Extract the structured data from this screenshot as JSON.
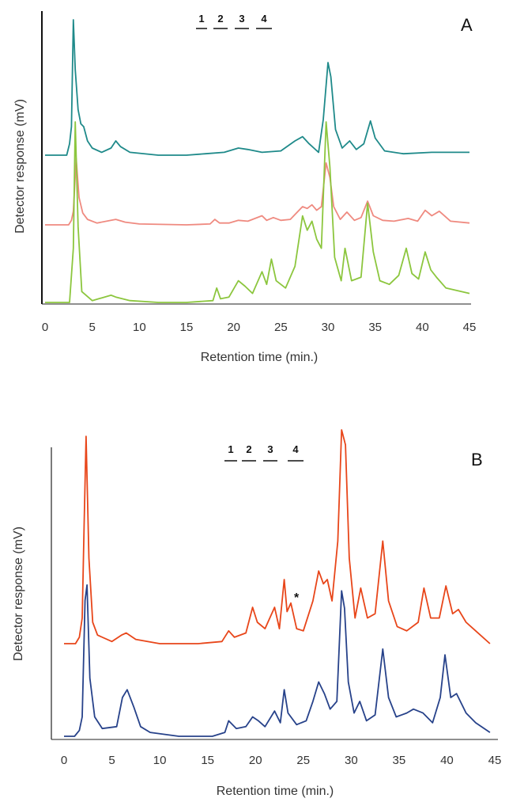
{
  "chart_data": [
    {
      "type": "line",
      "panel_label": "A",
      "xlabel": "Retention time (min.)",
      "ylabel": "Detector response (mV)",
      "xlim": [
        0,
        45
      ],
      "x_ticks": [
        "0",
        "5",
        "10",
        "15",
        "20",
        "25",
        "30",
        "35",
        "40",
        "45"
      ],
      "fractions": [
        "1",
        "2",
        "3",
        "4"
      ],
      "series": [
        {
          "color": "#1f8a8a",
          "baseline": 0.0,
          "values": [
            [
              2.3,
              0.0
            ],
            [
              2.6,
              0.08
            ],
            [
              2.8,
              0.2
            ],
            [
              3.0,
              0.95
            ],
            [
              3.2,
              0.6
            ],
            [
              3.5,
              0.32
            ],
            [
              3.8,
              0.22
            ],
            [
              4.1,
              0.2
            ],
            [
              4.5,
              0.1
            ],
            [
              5.0,
              0.05
            ],
            [
              6.0,
              0.02
            ],
            [
              7.0,
              0.05
            ],
            [
              7.5,
              0.1
            ],
            [
              8.0,
              0.06
            ],
            [
              9.0,
              0.02
            ],
            [
              12.0,
              0.0
            ],
            [
              15.0,
              0.0
            ],
            [
              17.0,
              0.01
            ],
            [
              19.0,
              0.02
            ],
            [
              20.5,
              0.05
            ],
            [
              21.5,
              0.04
            ],
            [
              23.0,
              0.02
            ],
            [
              25.0,
              0.03
            ],
            [
              26.5,
              0.1
            ],
            [
              27.3,
              0.13
            ],
            [
              28.0,
              0.08
            ],
            [
              28.5,
              0.05
            ],
            [
              29.0,
              0.02
            ],
            [
              29.5,
              0.25
            ],
            [
              30.0,
              0.65
            ],
            [
              30.3,
              0.55
            ],
            [
              30.8,
              0.18
            ],
            [
              31.5,
              0.05
            ],
            [
              32.3,
              0.1
            ],
            [
              33.0,
              0.04
            ],
            [
              33.8,
              0.08
            ],
            [
              34.5,
              0.24
            ],
            [
              35.0,
              0.12
            ],
            [
              36.0,
              0.03
            ],
            [
              38.0,
              0.01
            ],
            [
              41.0,
              0.02
            ],
            [
              45.0,
              0.02
            ]
          ]
        },
        {
          "color": "#ef8a80",
          "baseline": 0.0,
          "values": [
            [
              2.5,
              0.0
            ],
            [
              2.8,
              0.05
            ],
            [
              3.0,
              0.15
            ],
            [
              3.3,
              0.73
            ],
            [
              3.6,
              0.3
            ],
            [
              4.0,
              0.13
            ],
            [
              4.5,
              0.06
            ],
            [
              5.5,
              0.02
            ],
            [
              7.0,
              0.05
            ],
            [
              7.5,
              0.06
            ],
            [
              8.5,
              0.03
            ],
            [
              10.0,
              0.01
            ],
            [
              15.0,
              0.0
            ],
            [
              17.5,
              0.01
            ],
            [
              18.0,
              0.06
            ],
            [
              18.5,
              0.02
            ],
            [
              19.5,
              0.02
            ],
            [
              20.5,
              0.05
            ],
            [
              21.5,
              0.04
            ],
            [
              23.0,
              0.1
            ],
            [
              23.5,
              0.05
            ],
            [
              24.2,
              0.08
            ],
            [
              25.0,
              0.05
            ],
            [
              26.0,
              0.06
            ],
            [
              27.3,
              0.2
            ],
            [
              27.8,
              0.18
            ],
            [
              28.3,
              0.22
            ],
            [
              28.8,
              0.16
            ],
            [
              29.3,
              0.2
            ],
            [
              29.8,
              0.68
            ],
            [
              30.2,
              0.52
            ],
            [
              30.6,
              0.2
            ],
            [
              31.3,
              0.06
            ],
            [
              32.0,
              0.14
            ],
            [
              32.8,
              0.05
            ],
            [
              33.5,
              0.08
            ],
            [
              34.2,
              0.26
            ],
            [
              34.8,
              0.1
            ],
            [
              35.8,
              0.05
            ],
            [
              37.0,
              0.04
            ],
            [
              38.5,
              0.07
            ],
            [
              39.5,
              0.04
            ],
            [
              40.3,
              0.16
            ],
            [
              41.0,
              0.1
            ],
            [
              41.8,
              0.15
            ],
            [
              43.0,
              0.04
            ],
            [
              45.0,
              0.02
            ]
          ]
        },
        {
          "color": "#8cc63e",
          "baseline": 0.0,
          "values": [
            [
              2.6,
              0.0
            ],
            [
              3.0,
              0.3
            ],
            [
              3.2,
              1.0
            ],
            [
              3.5,
              0.42
            ],
            [
              3.9,
              0.06
            ],
            [
              5.0,
              0.01
            ],
            [
              7.0,
              0.04
            ],
            [
              7.5,
              0.03
            ],
            [
              9.0,
              0.01
            ],
            [
              12.0,
              0.0
            ],
            [
              15.0,
              0.0
            ],
            [
              17.8,
              0.01
            ],
            [
              18.2,
              0.08
            ],
            [
              18.6,
              0.02
            ],
            [
              19.5,
              0.03
            ],
            [
              20.5,
              0.12
            ],
            [
              21.2,
              0.09
            ],
            [
              22.0,
              0.05
            ],
            [
              23.0,
              0.17
            ],
            [
              23.5,
              0.1
            ],
            [
              24.0,
              0.24
            ],
            [
              24.5,
              0.12
            ],
            [
              25.5,
              0.08
            ],
            [
              26.5,
              0.2
            ],
            [
              27.3,
              0.48
            ],
            [
              27.8,
              0.4
            ],
            [
              28.3,
              0.45
            ],
            [
              28.8,
              0.35
            ],
            [
              29.3,
              0.3
            ],
            [
              29.8,
              1.0
            ],
            [
              30.2,
              0.75
            ],
            [
              30.7,
              0.25
            ],
            [
              31.4,
              0.12
            ],
            [
              31.8,
              0.3
            ],
            [
              32.5,
              0.12
            ],
            [
              33.5,
              0.14
            ],
            [
              34.2,
              0.55
            ],
            [
              34.8,
              0.28
            ],
            [
              35.5,
              0.12
            ],
            [
              36.5,
              0.1
            ],
            [
              37.5,
              0.15
            ],
            [
              38.3,
              0.3
            ],
            [
              38.9,
              0.16
            ],
            [
              39.6,
              0.13
            ],
            [
              40.3,
              0.28
            ],
            [
              40.9,
              0.18
            ],
            [
              41.5,
              0.14
            ],
            [
              42.5,
              0.08
            ],
            [
              45.0,
              0.05
            ]
          ]
        }
      ]
    },
    {
      "type": "line",
      "panel_label": "B",
      "xlabel": "Retention time (min.)",
      "ylabel": "Detector response (mV)",
      "xlim": [
        0,
        45
      ],
      "x_ticks": [
        "0",
        "5",
        "10",
        "15",
        "20",
        "25",
        "30",
        "35",
        "40",
        "45"
      ],
      "fractions": [
        "1",
        "2",
        "3",
        "4"
      ],
      "annotation": "*",
      "series": [
        {
          "color": "#e8461a",
          "baseline": 0.0,
          "values": [
            [
              1.2,
              0.0
            ],
            [
              1.6,
              0.03
            ],
            [
              1.9,
              0.12
            ],
            [
              2.1,
              0.55
            ],
            [
              2.3,
              0.97
            ],
            [
              2.6,
              0.4
            ],
            [
              3.0,
              0.1
            ],
            [
              3.5,
              0.04
            ],
            [
              5.0,
              0.01
            ],
            [
              6.0,
              0.04
            ],
            [
              6.5,
              0.05
            ],
            [
              7.5,
              0.02
            ],
            [
              10.0,
              0.0
            ],
            [
              14.0,
              0.0
            ],
            [
              16.5,
              0.01
            ],
            [
              17.2,
              0.06
            ],
            [
              17.8,
              0.03
            ],
            [
              19.0,
              0.05
            ],
            [
              19.7,
              0.17
            ],
            [
              20.2,
              0.1
            ],
            [
              21.0,
              0.07
            ],
            [
              22.0,
              0.17
            ],
            [
              22.5,
              0.07
            ],
            [
              23.0,
              0.3
            ],
            [
              23.3,
              0.15
            ],
            [
              23.7,
              0.19
            ],
            [
              24.3,
              0.07
            ],
            [
              25.0,
              0.06
            ],
            [
              26.0,
              0.2
            ],
            [
              26.6,
              0.34
            ],
            [
              27.1,
              0.28
            ],
            [
              27.5,
              0.3
            ],
            [
              28.0,
              0.2
            ],
            [
              28.6,
              0.48
            ],
            [
              29.0,
              1.0
            ],
            [
              29.4,
              0.93
            ],
            [
              29.8,
              0.4
            ],
            [
              30.4,
              0.12
            ],
            [
              31.0,
              0.26
            ],
            [
              31.7,
              0.12
            ],
            [
              32.5,
              0.14
            ],
            [
              33.3,
              0.48
            ],
            [
              33.9,
              0.2
            ],
            [
              34.8,
              0.08
            ],
            [
              35.8,
              0.06
            ],
            [
              37.0,
              0.1
            ],
            [
              37.6,
              0.26
            ],
            [
              38.3,
              0.12
            ],
            [
              39.2,
              0.12
            ],
            [
              39.9,
              0.27
            ],
            [
              40.6,
              0.14
            ],
            [
              41.2,
              0.16
            ],
            [
              42.0,
              0.1
            ],
            [
              43.0,
              0.06
            ],
            [
              44.5,
              0.0
            ]
          ]
        },
        {
          "color": "#27428a",
          "baseline": 0.0,
          "values": [
            [
              1.1,
              0.0
            ],
            [
              1.6,
              0.03
            ],
            [
              1.9,
              0.1
            ],
            [
              2.2,
              0.7
            ],
            [
              2.4,
              0.78
            ],
            [
              2.7,
              0.3
            ],
            [
              3.2,
              0.1
            ],
            [
              4.0,
              0.04
            ],
            [
              5.5,
              0.05
            ],
            [
              6.1,
              0.2
            ],
            [
              6.6,
              0.24
            ],
            [
              7.3,
              0.15
            ],
            [
              8.0,
              0.05
            ],
            [
              9.0,
              0.02
            ],
            [
              12.0,
              0.0
            ],
            [
              15.5,
              0.0
            ],
            [
              16.8,
              0.02
            ],
            [
              17.2,
              0.08
            ],
            [
              18.0,
              0.04
            ],
            [
              19.0,
              0.05
            ],
            [
              19.7,
              0.1
            ],
            [
              20.3,
              0.08
            ],
            [
              21.0,
              0.05
            ],
            [
              22.0,
              0.13
            ],
            [
              22.6,
              0.07
            ],
            [
              23.0,
              0.24
            ],
            [
              23.4,
              0.12
            ],
            [
              24.3,
              0.06
            ],
            [
              25.3,
              0.08
            ],
            [
              26.0,
              0.18
            ],
            [
              26.6,
              0.28
            ],
            [
              27.2,
              0.22
            ],
            [
              27.8,
              0.14
            ],
            [
              28.5,
              0.18
            ],
            [
              29.0,
              0.75
            ],
            [
              29.3,
              0.66
            ],
            [
              29.7,
              0.28
            ],
            [
              30.3,
              0.12
            ],
            [
              30.9,
              0.18
            ],
            [
              31.6,
              0.08
            ],
            [
              32.5,
              0.11
            ],
            [
              33.3,
              0.45
            ],
            [
              33.9,
              0.2
            ],
            [
              34.7,
              0.1
            ],
            [
              35.8,
              0.12
            ],
            [
              36.5,
              0.14
            ],
            [
              37.5,
              0.12
            ],
            [
              38.5,
              0.07
            ],
            [
              39.3,
              0.2
            ],
            [
              39.8,
              0.42
            ],
            [
              40.4,
              0.2
            ],
            [
              41.0,
              0.22
            ],
            [
              42.0,
              0.12
            ],
            [
              43.0,
              0.07
            ],
            [
              44.5,
              0.02
            ]
          ]
        }
      ]
    }
  ]
}
